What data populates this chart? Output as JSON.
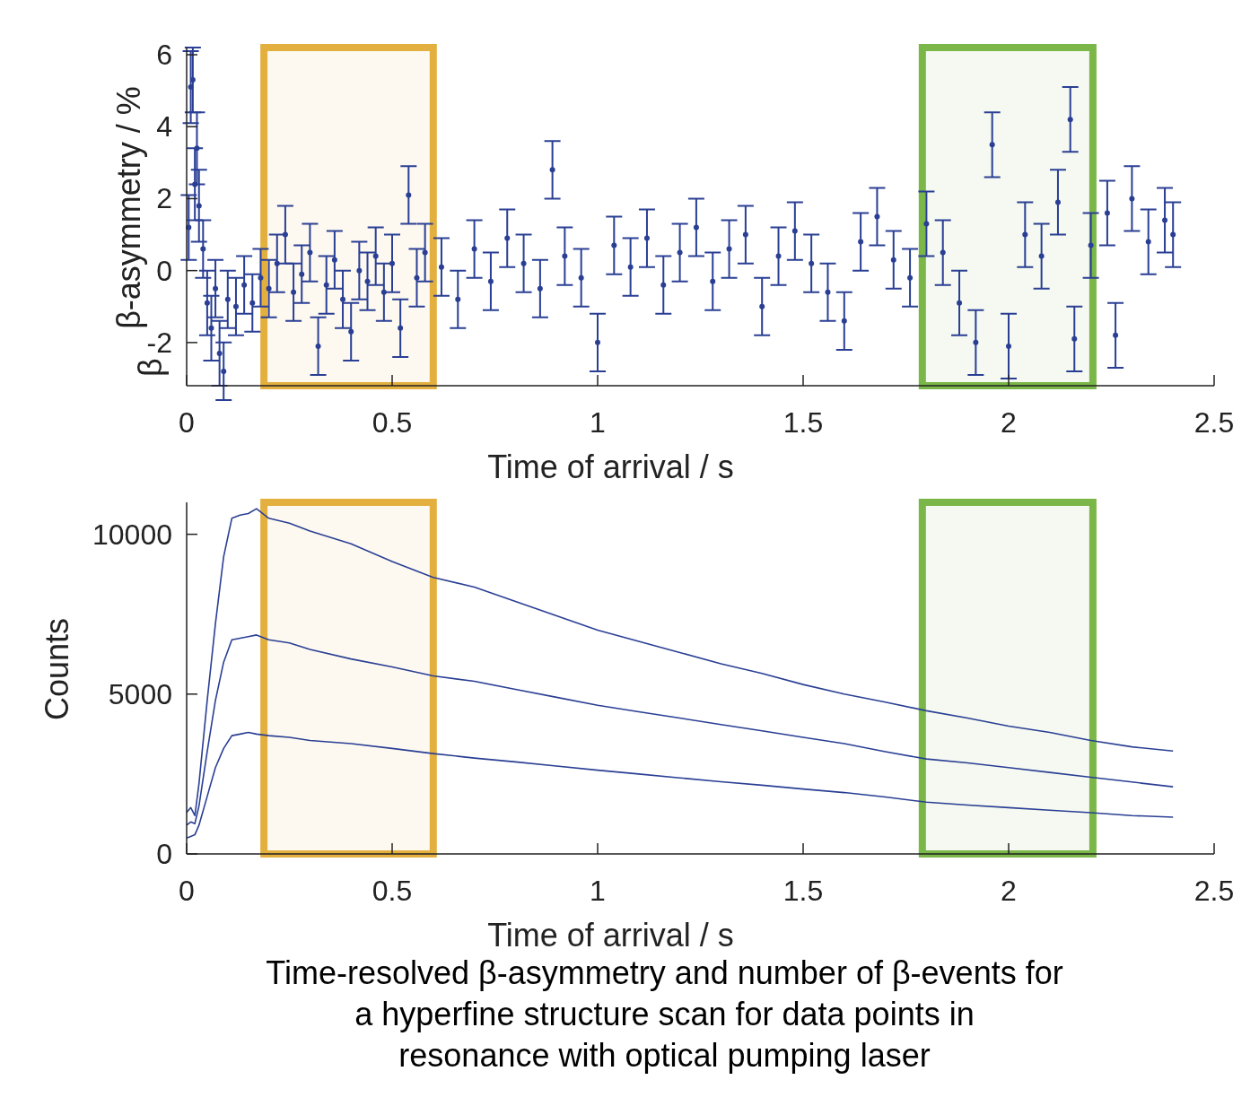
{
  "chart_data": [
    {
      "type": "scatter",
      "xlabel": "Time of arrival / s",
      "ylabel": "β-asymmetry / %",
      "annotations": [
        "β"
      ],
      "xlim": [
        0,
        2.5
      ],
      "xticks": [
        0,
        0.5,
        1,
        1.5,
        2,
        2.5
      ],
      "ylim": [
        -3.2,
        6.2
      ],
      "yticks": [
        -2,
        0,
        2,
        4,
        6
      ],
      "grid": false,
      "legend": false,
      "marker": "circle",
      "bands": [
        {
          "axis": "x",
          "from": 0.188,
          "to": 0.6,
          "color": "#e3b040"
        },
        {
          "axis": "x",
          "from": 1.79,
          "to": 2.205,
          "color": "#7ab648"
        }
      ],
      "series": [
        {
          "color": "#2a3f94",
          "x": [
            0.005,
            0.01,
            0.015,
            0.02,
            0.025,
            0.03,
            0.04,
            0.05,
            0.06,
            0.07,
            0.08,
            0.09,
            0.1,
            0.12,
            0.14,
            0.16,
            0.18,
            0.2,
            0.22,
            0.24,
            0.26,
            0.28,
            0.3,
            0.32,
            0.34,
            0.36,
            0.38,
            0.4,
            0.42,
            0.44,
            0.46,
            0.48,
            0.5,
            0.52,
            0.54,
            0.56,
            0.58,
            0.62,
            0.66,
            0.7,
            0.74,
            0.78,
            0.82,
            0.86,
            0.89,
            0.92,
            0.96,
            1.0,
            1.04,
            1.08,
            1.12,
            1.16,
            1.2,
            1.24,
            1.28,
            1.32,
            1.36,
            1.4,
            1.44,
            1.48,
            1.52,
            1.56,
            1.6,
            1.64,
            1.68,
            1.72,
            1.76,
            1.8,
            1.84,
            1.88,
            1.92,
            1.96,
            2.0,
            2.04,
            2.08,
            2.12,
            2.15,
            2.16,
            2.2,
            2.24,
            2.26,
            2.3,
            2.34,
            2.38,
            2.4
          ],
          "values": [
            1.2,
            5.1,
            5.3,
            2.4,
            3.4,
            1.8,
            0.6,
            -0.9,
            -1.6,
            -0.5,
            -2.3,
            -2.8,
            -0.8,
            -1.0,
            -0.4,
            -0.9,
            -0.2,
            -0.5,
            0.2,
            1.0,
            -0.6,
            -0.1,
            0.5,
            -2.1,
            -0.4,
            0.3,
            -0.8,
            -1.7,
            0.0,
            -0.3,
            0.4,
            -0.6,
            0.2,
            -1.6,
            2.1,
            -0.2,
            0.5,
            0.1,
            -0.8,
            0.6,
            -0.3,
            0.9,
            0.2,
            -0.5,
            2.8,
            0.4,
            -0.2,
            -2.0,
            0.7,
            0.1,
            0.9,
            -0.4,
            0.5,
            1.2,
            -0.3,
            0.6,
            1.0,
            -1.0,
            0.4,
            1.1,
            0.2,
            -0.6,
            -1.4,
            0.8,
            1.5,
            0.3,
            -0.2,
            1.3,
            0.5,
            -0.9,
            -2.0,
            3.5,
            -2.1,
            1.0,
            0.4,
            1.9,
            4.2,
            -1.9,
            0.7,
            1.6,
            -1.8,
            2.0,
            0.8,
            1.4,
            1.0
          ],
          "errors": [
            0.9,
            1.0,
            0.9,
            1.0,
            1.0,
            1.0,
            0.8,
            0.9,
            0.9,
            0.8,
            0.9,
            0.8,
            0.8,
            0.8,
            0.8,
            0.8,
            0.8,
            0.8,
            0.8,
            0.8,
            0.8,
            0.8,
            0.8,
            0.8,
            0.8,
            0.8,
            0.8,
            0.8,
            0.8,
            0.8,
            0.8,
            0.8,
            0.8,
            0.8,
            0.8,
            0.8,
            0.8,
            0.8,
            0.8,
            0.8,
            0.8,
            0.8,
            0.8,
            0.8,
            0.8,
            0.8,
            0.8,
            0.8,
            0.8,
            0.8,
            0.8,
            0.8,
            0.8,
            0.8,
            0.8,
            0.8,
            0.8,
            0.8,
            0.8,
            0.8,
            0.8,
            0.8,
            0.8,
            0.8,
            0.8,
            0.8,
            0.8,
            0.9,
            0.9,
            0.9,
            0.9,
            0.9,
            0.9,
            0.9,
            0.9,
            0.9,
            0.9,
            0.9,
            0.9,
            0.9,
            0.9,
            0.9,
            0.9,
            0.9,
            0.9
          ]
        }
      ]
    },
    {
      "type": "line",
      "xlabel": "Time of arrival / s",
      "ylabel": "Counts",
      "annotations": [
        "Time-resolved β-asymmetry and number of β-events for a hyperfine structure scan for data points in resonance with optical pumping laser"
      ],
      "xlim": [
        0,
        2.5
      ],
      "xticks": [
        0,
        0.5,
        1,
        1.5,
        2,
        2.5
      ],
      "ylim": [
        0,
        11000
      ],
      "yticks": [
        0,
        5000,
        10000
      ],
      "grid": false,
      "legend": false,
      "bands": [
        {
          "axis": "x",
          "from": 0.188,
          "to": 0.6,
          "color": "#e3b040"
        },
        {
          "axis": "x",
          "from": 1.79,
          "to": 2.205,
          "color": "#7ab648"
        }
      ],
      "x": [
        0,
        0.01,
        0.02,
        0.03,
        0.05,
        0.07,
        0.09,
        0.11,
        0.13,
        0.15,
        0.17,
        0.2,
        0.25,
        0.3,
        0.4,
        0.5,
        0.6,
        0.7,
        0.8,
        0.9,
        1.0,
        1.1,
        1.2,
        1.3,
        1.4,
        1.5,
        1.6,
        1.7,
        1.8,
        1.9,
        2.0,
        2.1,
        2.2,
        2.3,
        2.4
      ],
      "series": [
        {
          "color": "#2a3f94",
          "values": [
            1300,
            1450,
            1200,
            2200,
            4800,
            7200,
            9300,
            10500,
            10600,
            10650,
            10800,
            10500,
            10350,
            10100,
            9700,
            9150,
            8650,
            8350,
            7900,
            7450,
            7000,
            6650,
            6300,
            5950,
            5650,
            5300,
            5000,
            4750,
            4480,
            4250,
            4000,
            3800,
            3550,
            3350,
            3220
          ]
        },
        {
          "color": "#2a3f94",
          "values": [
            900,
            1000,
            950,
            1500,
            3200,
            4800,
            6000,
            6700,
            6750,
            6800,
            6850,
            6700,
            6600,
            6400,
            6100,
            5850,
            5570,
            5400,
            5150,
            4900,
            4650,
            4450,
            4250,
            4050,
            3850,
            3650,
            3450,
            3200,
            2970,
            2850,
            2700,
            2550,
            2400,
            2250,
            2100
          ]
        },
        {
          "color": "#2a3f94",
          "values": [
            500,
            550,
            600,
            900,
            1800,
            2700,
            3300,
            3700,
            3750,
            3800,
            3750,
            3700,
            3650,
            3550,
            3450,
            3300,
            3140,
            3000,
            2880,
            2750,
            2620,
            2500,
            2380,
            2260,
            2150,
            2030,
            1920,
            1780,
            1620,
            1530,
            1450,
            1370,
            1290,
            1200,
            1150
          ]
        }
      ]
    }
  ]
}
